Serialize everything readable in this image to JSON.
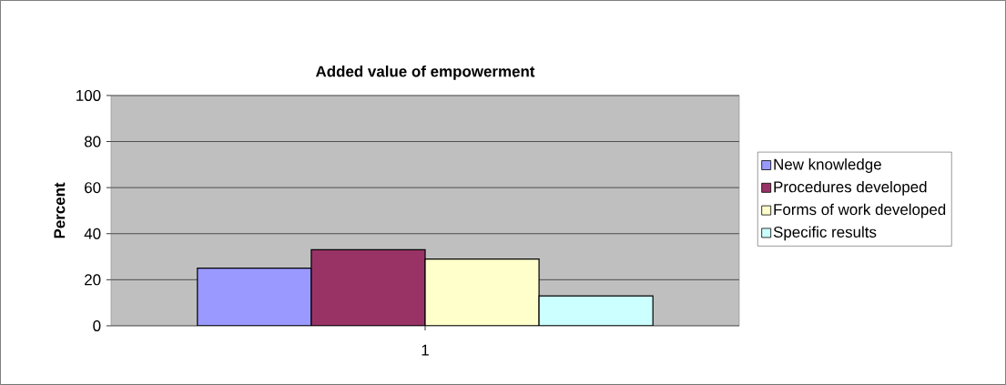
{
  "chart_data": {
    "type": "bar",
    "title": "Added value of empowerment",
    "ylabel": "Percent",
    "categories": [
      "1"
    ],
    "series": [
      {
        "name": "New knowledge",
        "color": "#9999ff",
        "values": [
          25
        ]
      },
      {
        "name": "Procedures developed",
        "color": "#993366",
        "values": [
          33
        ]
      },
      {
        "name": "Forms of work developed",
        "color": "#ffffcc",
        "values": [
          29
        ]
      },
      {
        "name": "Specific results",
        "color": "#ccffff",
        "values": [
          13
        ]
      }
    ],
    "ylim": [
      0,
      100
    ],
    "yticks": [
      0,
      20,
      40,
      60,
      80,
      100
    ],
    "grid": "y",
    "legend": "right"
  }
}
